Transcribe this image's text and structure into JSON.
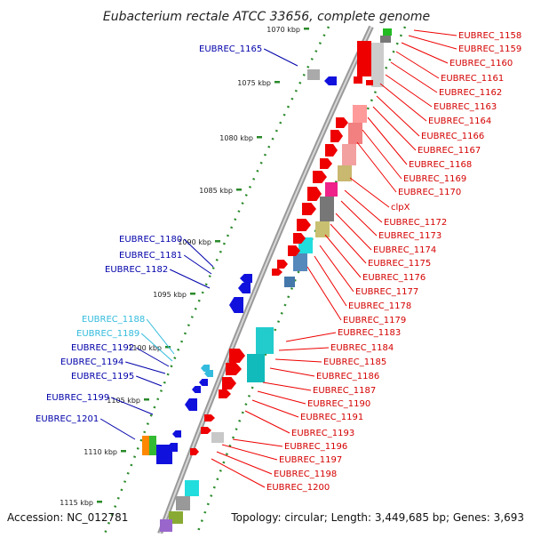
{
  "title": "Eubacterium rectale ATCC 33656, complete genome",
  "accession": "Accession: NC_012781",
  "topology": "Topology: circular; Length: 3,449,685 bp; Genes: 3,693",
  "kbp_ticks": [
    "1070 kbp",
    "1075 kbp",
    "1080 kbp",
    "1085 kbp",
    "1090 kbp",
    "1095 kbp",
    "1100 kbp",
    "1105 kbp",
    "1110 kbp",
    "1115 kbp"
  ],
  "left_labels": [
    {
      "text": "EUBREC_1165",
      "color": "#0000aa"
    },
    {
      "text": "EUBREC_1180",
      "color": "#0000aa"
    },
    {
      "text": "EUBREC_1181",
      "color": "#0000aa"
    },
    {
      "text": "EUBREC_1182",
      "color": "#0000aa"
    },
    {
      "text": "EUBREC_1188",
      "color": "#33bbdd"
    },
    {
      "text": "EUBREC_1189",
      "color": "#33bbdd"
    },
    {
      "text": "EUBREC_1192",
      "color": "#0000aa"
    },
    {
      "text": "EUBREC_1194",
      "color": "#0000aa"
    },
    {
      "text": "EUBREC_1195",
      "color": "#0000aa"
    },
    {
      "text": "EUBREC_1199",
      "color": "#0000aa"
    },
    {
      "text": "EUBREC_1201",
      "color": "#0000aa"
    }
  ],
  "right_labels": [
    "EUBREC_1158",
    "EUBREC_1159",
    "EUBREC_1160",
    "EUBREC_1161",
    "EUBREC_1162",
    "EUBREC_1163",
    "EUBREC_1164",
    "EUBREC_1166",
    "EUBREC_1167",
    "EUBREC_1168",
    "EUBREC_1169",
    "EUBREC_1170",
    "clpX",
    "EUBREC_1172",
    "EUBREC_1173",
    "EUBREC_1174",
    "EUBREC_1175",
    "EUBREC_1176",
    "EUBREC_1177",
    "EUBREC_1178",
    "EUBREC_1179",
    "EUBREC_1183",
    "EUBREC_1184",
    "EUBREC_1185",
    "EUBREC_1186",
    "EUBREC_1187",
    "EUBREC_1190",
    "EUBREC_1191",
    "EUBREC_1193",
    "EUBREC_1196",
    "EUBREC_1197",
    "EUBREC_1198",
    "EUBREC_1200"
  ],
  "colors": {
    "forward_gene": "#ee0000",
    "reverse_gene": "#1111dd",
    "backbone": "#999999",
    "tick": "#2a8a2a"
  }
}
